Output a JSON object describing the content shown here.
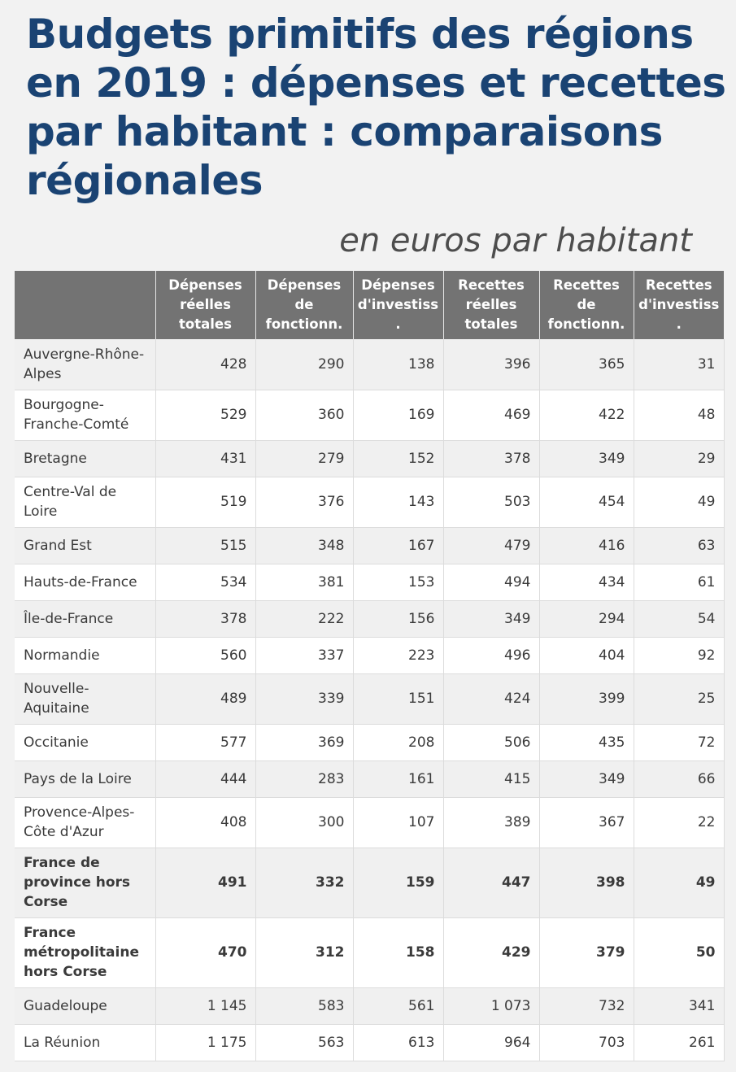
{
  "title": "Budgets primitifs des régions en 2019 : dépenses et recettes par habitant : comparaisons régionales",
  "subtitle": "en euros par habitant",
  "table": {
    "headers": [
      "",
      "Dépenses réelles totales",
      "Dépenses de fonctionn.",
      "Dépenses d'investiss.",
      "Recettes réelles totales",
      "Recettes de fonctionn.",
      "Recettes d'investiss."
    ],
    "rows": [
      {
        "region": "Auvergne-Rhône-Alpes",
        "values": [
          "428",
          "290",
          "138",
          "396",
          "365",
          "31"
        ]
      },
      {
        "region": "Bourgogne-Franche-Comté",
        "values": [
          "529",
          "360",
          "169",
          "469",
          "422",
          "48"
        ]
      },
      {
        "region": "Bretagne",
        "values": [
          "431",
          "279",
          "152",
          "378",
          "349",
          "29"
        ]
      },
      {
        "region": "Centre-Val de Loire",
        "values": [
          "519",
          "376",
          "143",
          "503",
          "454",
          "49"
        ]
      },
      {
        "region": "Grand Est",
        "values": [
          "515",
          "348",
          "167",
          "479",
          "416",
          "63"
        ]
      },
      {
        "region": "Hauts-de-France",
        "values": [
          "534",
          "381",
          "153",
          "494",
          "434",
          "61"
        ]
      },
      {
        "region": "Île-de-France",
        "values": [
          "378",
          "222",
          "156",
          "349",
          "294",
          "54"
        ]
      },
      {
        "region": "Normandie",
        "values": [
          "560",
          "337",
          "223",
          "496",
          "404",
          "92"
        ]
      },
      {
        "region": "Nouvelle-Aquitaine",
        "values": [
          "489",
          "339",
          "151",
          "424",
          "399",
          "25"
        ]
      },
      {
        "region": "Occitanie",
        "values": [
          "577",
          "369",
          "208",
          "506",
          "435",
          "72"
        ]
      },
      {
        "region": "Pays de la Loire",
        "values": [
          "444",
          "283",
          "161",
          "415",
          "349",
          "66"
        ]
      },
      {
        "region": "Provence-Alpes-Côte d'Azur",
        "values": [
          "408",
          "300",
          "107",
          "389",
          "367",
          "22"
        ]
      },
      {
        "region": "France de province hors Corse",
        "values": [
          "491",
          "332",
          "159",
          "447",
          "398",
          "49"
        ]
      },
      {
        "region": "France métropolitaine hors Corse",
        "values": [
          "470",
          "312",
          "158",
          "429",
          "379",
          "50"
        ]
      },
      {
        "region": "Guadeloupe",
        "values": [
          "1 145",
          "583",
          "561",
          "1 073",
          "732",
          "341"
        ]
      },
      {
        "region": "La Réunion",
        "values": [
          "1 175",
          "563",
          "613",
          "964",
          "703",
          "261"
        ]
      }
    ]
  }
}
